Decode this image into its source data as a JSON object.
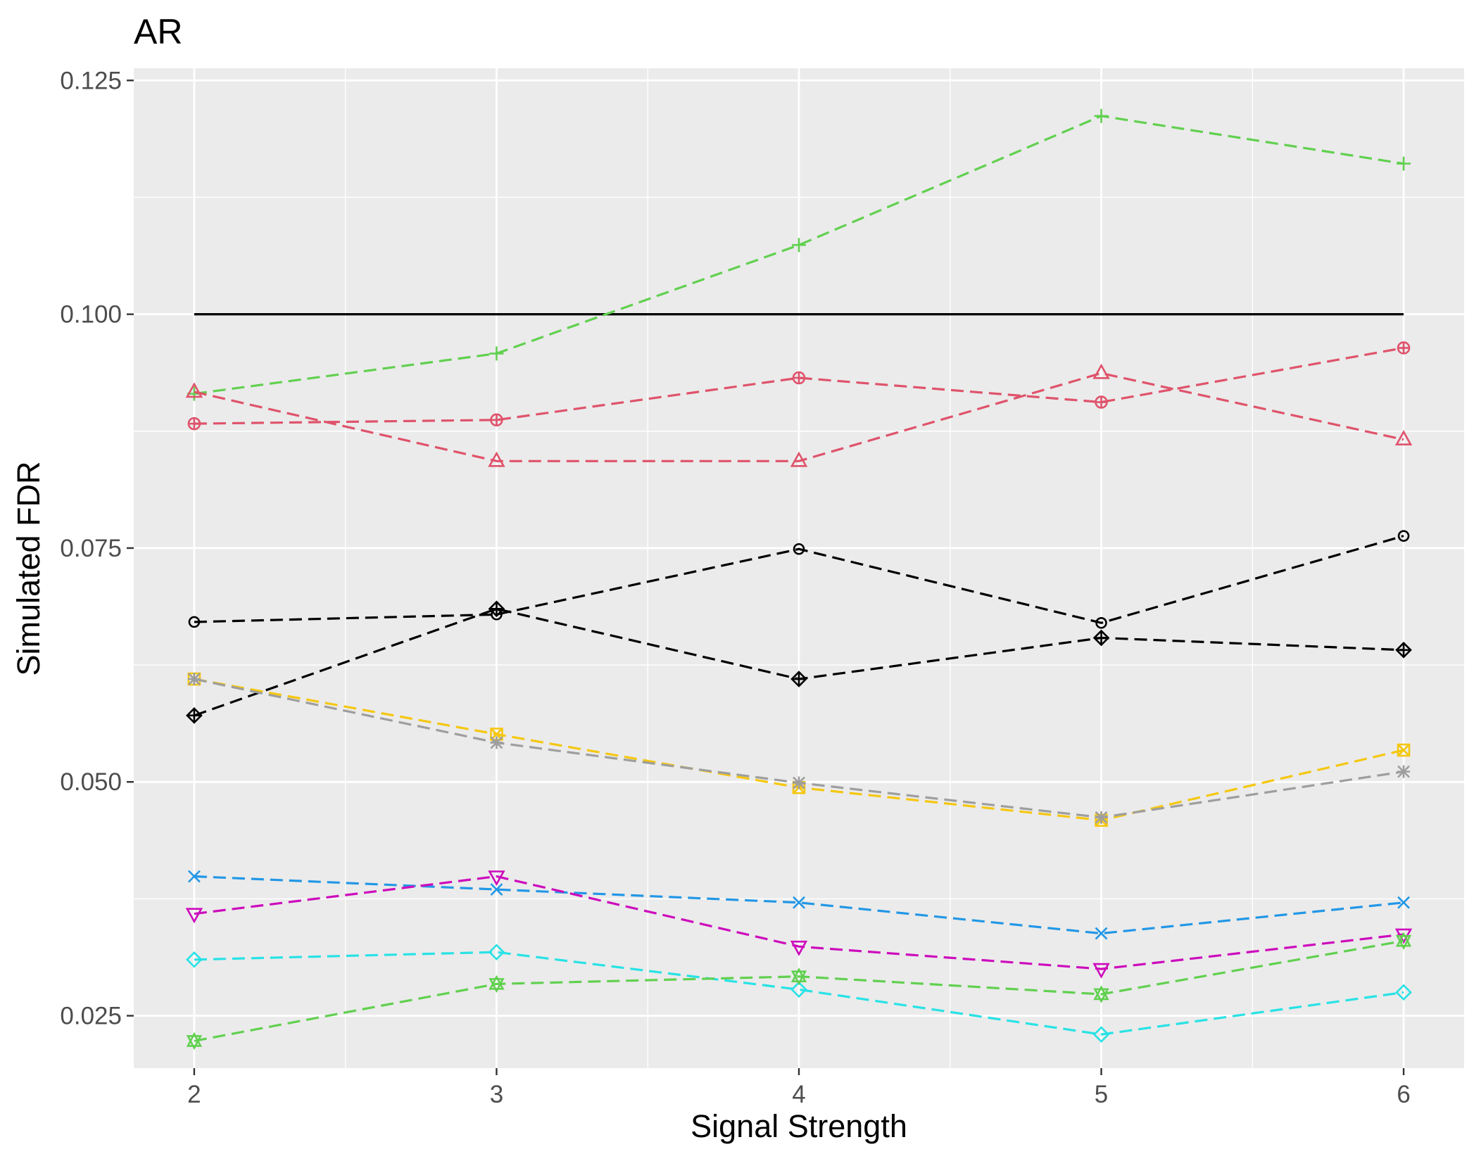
{
  "chart_data": {
    "type": "line",
    "title": "AR",
    "xlabel": "Signal Strength",
    "ylabel": "Simulated FDR",
    "x": [
      2,
      3,
      4,
      5,
      6
    ],
    "xlim": [
      1.8,
      6.2
    ],
    "ylim": [
      0.0194,
      0.1263
    ],
    "xticks": [
      2,
      3,
      4,
      5,
      6
    ],
    "xtick_labels": [
      "2",
      "3",
      "4",
      "5",
      "6"
    ],
    "yticks": [
      0.025,
      0.05,
      0.075,
      0.1,
      0.125
    ],
    "ytick_labels": [
      "0.025",
      "0.050",
      "0.075",
      "0.100",
      "0.125"
    ],
    "grid": true,
    "legend": "none",
    "panel_background": "#ebebeb",
    "reference_line": {
      "y": 0.1,
      "color": "#000000",
      "style": "solid"
    },
    "series": [
      {
        "color": "#61d04f",
        "marker": "plus",
        "dash": true,
        "values": [
          0.0915,
          0.0958,
          0.1074,
          0.1212,
          0.1161
        ]
      },
      {
        "color": "#df536b",
        "marker": "circle-plus",
        "dash": true,
        "values": [
          0.0883,
          0.0887,
          0.0932,
          0.0906,
          0.0964
        ]
      },
      {
        "color": "#df536b",
        "marker": "triangle-up",
        "dash": true,
        "values": [
          0.0917,
          0.0843,
          0.0843,
          0.0937,
          0.0866
        ]
      },
      {
        "color": "#000000",
        "marker": "circle",
        "dash": true,
        "values": [
          0.0671,
          0.0679,
          0.0749,
          0.067,
          0.0763
        ]
      },
      {
        "color": "#000000",
        "marker": "diamond-plus",
        "dash": true,
        "values": [
          0.0571,
          0.0685,
          0.061,
          0.0654,
          0.0641
        ]
      },
      {
        "color": "#f5c710",
        "marker": "square-cross",
        "dash": true,
        "values": [
          0.061,
          0.0551,
          0.0494,
          0.0459,
          0.0534
        ]
      },
      {
        "color": "#9e9e9e",
        "marker": "asterisk",
        "dash": true,
        "values": [
          0.061,
          0.0542,
          0.0499,
          0.0462,
          0.0511
        ]
      },
      {
        "color": "#2297e6",
        "marker": "cross",
        "dash": true,
        "values": [
          0.0399,
          0.0385,
          0.0371,
          0.0338,
          0.0371
        ]
      },
      {
        "color": "#cd0bbc",
        "marker": "triangle-down",
        "dash": true,
        "values": [
          0.0359,
          0.0399,
          0.0324,
          0.03,
          0.0337
        ]
      },
      {
        "color": "#28e2e5",
        "marker": "diamond",
        "dash": true,
        "values": [
          0.031,
          0.0318,
          0.0278,
          0.023,
          0.0275
        ]
      },
      {
        "color": "#61d04f",
        "marker": "hourglass",
        "dash": true,
        "values": [
          0.0223,
          0.0284,
          0.0292,
          0.0273,
          0.033
        ]
      }
    ]
  }
}
